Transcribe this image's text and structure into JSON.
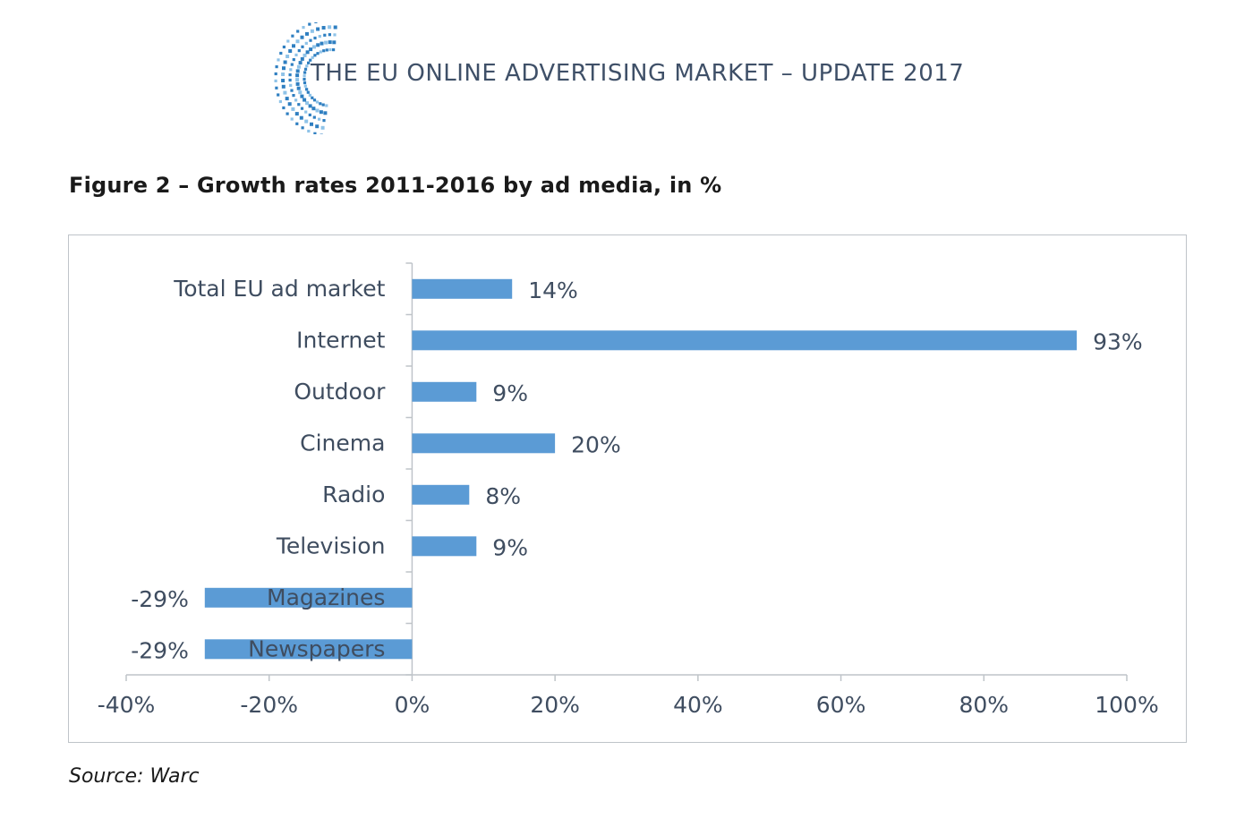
{
  "header": {
    "title": "THE EU ONLINE ADVERTISING MARKET – UPDATE 2017",
    "logo_name": "eu-swirl-logo",
    "colors": {
      "logo_primary": "#2f7fc1",
      "logo_light": "#8fc3e8"
    }
  },
  "figure": {
    "title": "Figure 2 – Growth rates 2011-2016 by ad media, in %",
    "source": "Source: Warc"
  },
  "chart_data": {
    "type": "bar",
    "orientation": "horizontal",
    "title": "Growth rates 2011-2016 by ad media, in %",
    "categories": [
      "Total EU ad market",
      "Internet",
      "Outdoor",
      "Cinema",
      "Radio",
      "Television",
      "Magazines",
      "Newspapers"
    ],
    "values": [
      14,
      93,
      9,
      20,
      8,
      9,
      -29,
      -29
    ],
    "value_labels": [
      "14%",
      "93%",
      "9%",
      "20%",
      "8%",
      "9%",
      "-29%",
      "-29%"
    ],
    "xlim": [
      -40,
      100
    ],
    "xticks": [
      -40,
      -20,
      0,
      20,
      40,
      60,
      80,
      100
    ],
    "xtick_labels": [
      "-40%",
      "-20%",
      "0%",
      "20%",
      "40%",
      "60%",
      "80%",
      "100%"
    ],
    "xlabel": "",
    "ylabel": "",
    "grid": false,
    "bar_color": "#5b9bd5"
  }
}
